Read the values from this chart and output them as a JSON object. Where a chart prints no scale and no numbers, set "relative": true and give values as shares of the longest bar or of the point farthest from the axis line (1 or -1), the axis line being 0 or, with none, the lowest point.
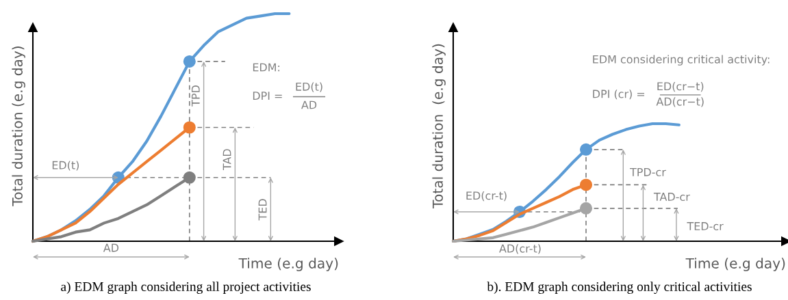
{
  "chart_data": [
    {
      "type": "line",
      "title": "a) EDM graph considering all project activities",
      "xlabel": "Time (e.g day)",
      "ylabel": "Total duration (e.g day)",
      "relative": true,
      "categories": [
        null,
        null,
        null,
        null,
        null,
        null,
        null,
        null,
        null,
        null,
        null,
        null,
        null,
        null,
        null,
        null,
        null,
        null,
        null
      ],
      "series": [
        {
          "color": "#5b9bd5",
          "values": [
            0,
            0.02,
            0.05,
            0.09,
            0.14,
            0.2,
            0.28,
            0.35,
            0.44,
            0.55,
            0.67,
            0.79,
            0.86,
            0.92,
            0.95,
            0.98,
            0.99,
            1.0,
            1.0
          ]
        },
        {
          "color": "#ed7d31",
          "values": [
            0,
            0.02,
            0.05,
            0.08,
            0.13,
            0.19,
            0.25,
            0.3,
            0.35,
            0.4,
            0.45,
            0.5,
            null,
            null,
            null,
            null,
            null,
            null,
            null
          ]
        },
        {
          "color": "#7f7f7f",
          "values": [
            0,
            0.01,
            0.02,
            0.04,
            0.05,
            0.08,
            0.1,
            0.13,
            0.16,
            0.2,
            0.24,
            0.28,
            null,
            null,
            null,
            null,
            null,
            null,
            null
          ]
        }
      ],
      "annotations": [
        "EDM:",
        "DPI =",
        "ED(t)",
        "AD",
        "TPD",
        "TAD",
        "TED",
        "ED(t)",
        "AD"
      ]
    },
    {
      "type": "line",
      "title": "b). EDM graph considering only critical activities",
      "xlabel": "Time (e.g day)",
      "ylabel": "Total duration  (e.g day)",
      "relative": true,
      "categories": [
        null,
        null,
        null,
        null,
        null,
        null,
        null,
        null,
        null,
        null,
        null,
        null,
        null,
        null,
        null,
        null,
        null,
        null
      ],
      "series": [
        {
          "color": "#5b9bd5",
          "values": [
            0,
            0.02,
            0.06,
            0.1,
            0.17,
            0.25,
            0.34,
            0.44,
            0.55,
            0.67,
            0.78,
            0.86,
            0.91,
            0.95,
            0.98,
            1.0,
            1.0,
            0.99
          ]
        },
        {
          "color": "#ed7d31",
          "values": [
            0,
            0.02,
            0.05,
            0.09,
            0.16,
            0.23,
            0.28,
            0.33,
            0.38,
            0.44,
            0.48,
            null,
            null,
            null,
            null,
            null,
            null,
            null
          ]
        },
        {
          "color": "#a5a5a5",
          "values": [
            0,
            0.01,
            0.02,
            0.03,
            0.06,
            0.09,
            0.12,
            0.16,
            0.2,
            0.24,
            0.28,
            null,
            null,
            null,
            null,
            null,
            null,
            null
          ]
        }
      ],
      "annotations": [
        "EDM considering critical activity:",
        "DPI (cr) =",
        "ED(cr−t)",
        "AD(cr−t)",
        "TPD-cr",
        "TAD-cr",
        "TED-cr",
        "ED(cr-t)",
        "AD(cr-t)"
      ]
    }
  ]
}
